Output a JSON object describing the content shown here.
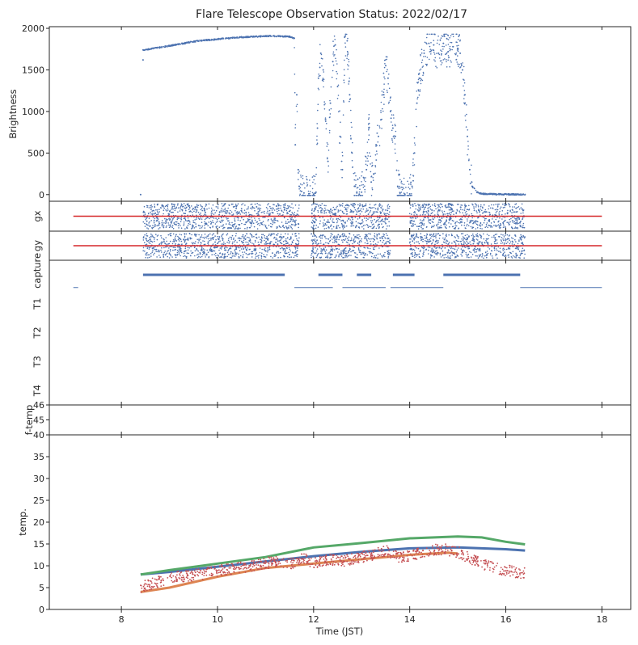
{
  "title": "Flare Telescope Observation Status: 2022/02/17",
  "colors": {
    "blue": "#4c72b0",
    "orange": "#dd8452",
    "green": "#55a868",
    "red": "#c44e52",
    "line_red": "#d62728",
    "axis": "#262626"
  },
  "chart_data": {
    "type": "scatter",
    "xlabel": "Time (JST)",
    "xlim": [
      6.5,
      18.6
    ],
    "xticks": [
      8,
      10,
      12,
      14,
      16,
      18
    ],
    "panels": [
      {
        "id": "brightness",
        "ylabel": "Brightness",
        "ylim": [
          -80,
          2020
        ],
        "yticks": [
          0,
          500,
          1000,
          1500,
          2000
        ],
        "series": [
          {
            "color": "blue",
            "style": "dots",
            "points": [
              [
                8.4,
                0
              ],
              [
                8.45,
                1620
              ],
              [
                8.45,
                1740
              ],
              [
                8.8,
                1770
              ],
              [
                9.2,
                1810
              ],
              [
                9.6,
                1850
              ],
              [
                10.0,
                1870
              ],
              [
                10.4,
                1890
              ],
              [
                10.8,
                1900
              ],
              [
                11.1,
                1910
              ],
              [
                11.3,
                1905
              ],
              [
                11.5,
                1900
              ],
              [
                11.6,
                1880
              ],
              [
                11.62,
                600
              ],
              [
                11.65,
                1200
              ],
              [
                11.68,
                300
              ],
              [
                11.7,
                100
              ],
              [
                11.75,
                40
              ],
              [
                11.8,
                20
              ],
              [
                11.9,
                10
              ],
              [
                12.0,
                5
              ],
              [
                12.05,
                30
              ],
              [
                12.08,
                800
              ],
              [
                12.1,
                1400
              ],
              [
                12.15,
                1700
              ],
              [
                12.2,
                1500
              ],
              [
                12.25,
                900
              ],
              [
                12.3,
                400
              ],
              [
                12.35,
                1100
              ],
              [
                12.4,
                1600
              ],
              [
                12.45,
                1800
              ],
              [
                12.5,
                1300
              ],
              [
                12.55,
                700
              ],
              [
                12.6,
                300
              ],
              [
                12.65,
                1900
              ],
              [
                12.7,
                1850
              ],
              [
                12.75,
                1200
              ],
              [
                12.8,
                500
              ],
              [
                12.85,
                100
              ],
              [
                12.9,
                20
              ],
              [
                12.95,
                5
              ],
              [
                13.0,
                30
              ],
              [
                13.05,
                200
              ],
              [
                13.1,
                300
              ],
              [
                13.15,
                800
              ],
              [
                13.2,
                150
              ],
              [
                13.25,
                250
              ],
              [
                13.3,
                600
              ],
              [
                13.35,
                700
              ],
              [
                13.4,
                900
              ],
              [
                13.45,
                1200
              ],
              [
                13.5,
                1550
              ],
              [
                13.55,
                1400
              ],
              [
                13.6,
                1000
              ],
              [
                13.65,
                800
              ],
              [
                13.7,
                700
              ],
              [
                13.75,
                100
              ],
              [
                13.8,
                20
              ],
              [
                13.9,
                5
              ],
              [
                14.0,
                8
              ],
              [
                14.05,
                100
              ],
              [
                14.1,
                500
              ],
              [
                14.15,
                1100
              ],
              [
                14.2,
                1400
              ],
              [
                14.3,
                1700
              ],
              [
                14.4,
                1820
              ],
              [
                14.5,
                1800
              ],
              [
                14.6,
                1700
              ],
              [
                14.7,
                1820
              ],
              [
                14.8,
                1720
              ],
              [
                14.9,
                1780
              ],
              [
                15.0,
                1760
              ],
              [
                15.05,
                1700
              ],
              [
                15.1,
                1500
              ],
              [
                15.15,
                1200
              ],
              [
                15.2,
                700
              ],
              [
                15.25,
                300
              ],
              [
                15.3,
                100
              ],
              [
                15.4,
                30
              ],
              [
                15.5,
                10
              ],
              [
                15.8,
                5
              ],
              [
                16.1,
                3
              ],
              [
                16.4,
                2
              ]
            ]
          }
        ]
      },
      {
        "id": "gx",
        "ylabel": "gx",
        "ylim": [
          -1,
          1
        ],
        "yticks": [],
        "hline": {
          "y": 0,
          "x0": 7.0,
          "x1": 18.0,
          "color": "line_red"
        },
        "scatter_bands": [
          {
            "x0": 8.45,
            "x1": 11.7
          },
          {
            "x0": 11.95,
            "x1": 13.6
          },
          {
            "x0": 14.0,
            "x1": 16.4
          }
        ],
        "band_spread": 0.85,
        "color": "blue"
      },
      {
        "id": "gy",
        "ylabel": "gy",
        "ylim": [
          -1,
          1
        ],
        "yticks": [],
        "hline": {
          "y": 0,
          "x0": 7.0,
          "x1": 18.0,
          "color": "line_red"
        },
        "scatter_bands": [
          {
            "x0": 8.45,
            "x1": 11.7
          },
          {
            "x0": 11.95,
            "x1": 13.6
          },
          {
            "x0": 14.0,
            "x1": 16.4
          }
        ],
        "band_spread": 0.85,
        "color": "blue"
      },
      {
        "id": "capture",
        "ylabel": "",
        "categories": [
          "capture",
          "T1",
          "T2",
          "T3",
          "T4"
        ],
        "segments": [
          {
            "row": 0,
            "x0": 8.45,
            "x1": 11.4,
            "color": "blue",
            "weight": "thick"
          },
          {
            "row": 0,
            "x0": 12.1,
            "x1": 12.6,
            "color": "blue",
            "weight": "thick"
          },
          {
            "row": 0,
            "x0": 12.9,
            "x1": 13.2,
            "color": "blue",
            "weight": "thick"
          },
          {
            "row": 0,
            "x0": 13.65,
            "x1": 14.1,
            "color": "blue",
            "weight": "thick"
          },
          {
            "row": 0,
            "x0": 14.7,
            "x1": 16.3,
            "color": "blue",
            "weight": "thick"
          },
          {
            "row": 0.45,
            "x0": 7.0,
            "x1": 7.1,
            "color": "blue",
            "weight": "thin"
          },
          {
            "row": 0.45,
            "x0": 11.6,
            "x1": 12.4,
            "color": "blue",
            "weight": "thin"
          },
          {
            "row": 0.45,
            "x0": 12.6,
            "x1": 13.5,
            "color": "blue",
            "weight": "thin"
          },
          {
            "row": 0.45,
            "x0": 13.6,
            "x1": 14.7,
            "color": "blue",
            "weight": "thin"
          },
          {
            "row": 0.45,
            "x0": 16.3,
            "x1": 18.0,
            "color": "blue",
            "weight": "thin"
          }
        ]
      },
      {
        "id": "ftemp",
        "ylabel": "f-temp",
        "ylim": [
          44,
          46
        ],
        "yticks": [
          45,
          46
        ]
      },
      {
        "id": "temp",
        "ylabel": "temp.",
        "ylim": [
          0,
          40
        ],
        "yticks": [
          0,
          5,
          10,
          15,
          20,
          25,
          30,
          35,
          40
        ],
        "series": [
          {
            "color": "blue",
            "style": "line",
            "points": [
              [
                8.4,
                8
              ],
              [
                9.0,
                8.6
              ],
              [
                10.0,
                9.8
              ],
              [
                11.0,
                11
              ],
              [
                12.0,
                12.2
              ],
              [
                13.0,
                13.2
              ],
              [
                14.0,
                14
              ],
              [
                15.0,
                14.2
              ],
              [
                15.5,
                14
              ],
              [
                16.0,
                13.8
              ],
              [
                16.4,
                13.5
              ]
            ]
          },
          {
            "color": "green",
            "style": "line",
            "points": [
              [
                8.4,
                8
              ],
              [
                9.0,
                9
              ],
              [
                10.0,
                10.5
              ],
              [
                11.0,
                12
              ],
              [
                12.0,
                14.2
              ],
              [
                13.0,
                15.2
              ],
              [
                14.0,
                16.3
              ],
              [
                15.0,
                16.7
              ],
              [
                15.5,
                16.5
              ],
              [
                16.0,
                15.5
              ],
              [
                16.4,
                14.9
              ]
            ]
          },
          {
            "color": "orange",
            "style": "line",
            "points": [
              [
                8.4,
                4
              ],
              [
                9.0,
                5
              ],
              [
                10.0,
                7.5
              ],
              [
                11.0,
                9.5
              ],
              [
                12.0,
                10.5
              ],
              [
                13.0,
                11.5
              ],
              [
                14.0,
                12.5
              ],
              [
                14.8,
                13
              ],
              [
                15.0,
                12.8
              ]
            ]
          },
          {
            "color": "red",
            "style": "noisy",
            "points": [
              [
                8.4,
                5
              ],
              [
                8.8,
                6.5
              ],
              [
                9.2,
                7.5
              ],
              [
                9.6,
                8
              ],
              [
                10.0,
                8.8
              ],
              [
                10.4,
                9.5
              ],
              [
                10.8,
                10.2
              ],
              [
                11.2,
                11
              ],
              [
                11.6,
                10.5
              ],
              [
                11.8,
                11.8
              ],
              [
                12.0,
                10.5
              ],
              [
                12.3,
                11.5
              ],
              [
                12.6,
                11
              ],
              [
                12.9,
                11.8
              ],
              [
                13.2,
                12.5
              ],
              [
                13.5,
                13.5
              ],
              [
                13.8,
                12
              ],
              [
                14.1,
                12.5
              ],
              [
                14.4,
                13.5
              ],
              [
                14.7,
                13.8
              ],
              [
                15.0,
                13.2
              ],
              [
                15.3,
                11.5
              ],
              [
                15.6,
                10
              ],
              [
                16.0,
                9
              ],
              [
                16.4,
                8.2
              ]
            ]
          }
        ]
      }
    ]
  }
}
